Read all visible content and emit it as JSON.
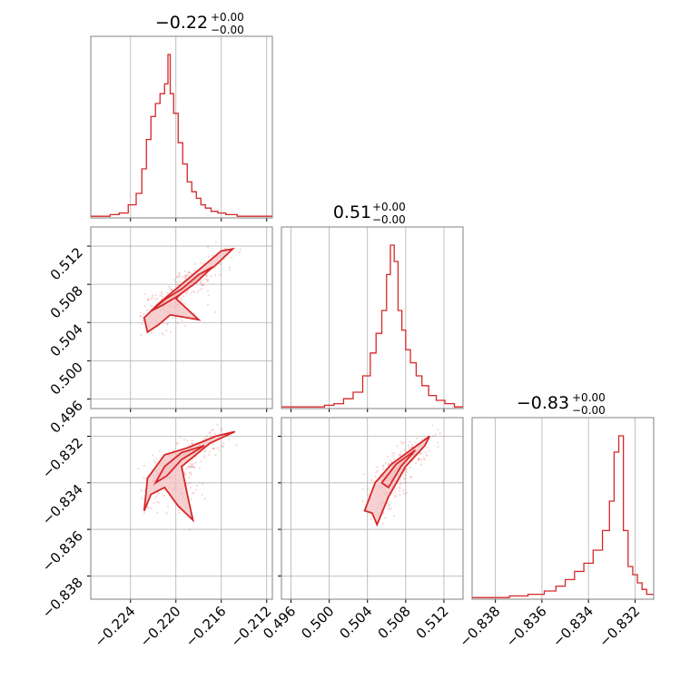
{
  "colors": {
    "main": "#d62728",
    "fill": "#f4c2c3",
    "grid": "#b0b0b0",
    "frame": "#808080"
  },
  "titles": {
    "p0": {
      "base": "−0.22",
      "sup": "+0.00",
      "sub": "−0.00"
    },
    "p1": {
      "base": "0.51",
      "sup": "+0.00",
      "sub": "−0.00"
    },
    "p2": {
      "base": "−0.83",
      "sup": "+0.00",
      "sub": "−0.00"
    }
  },
  "chart_data": [
    {
      "type": "histogram",
      "panel": "diag-0",
      "xlim": [
        -0.2275,
        -0.2115
      ],
      "bins": [
        {
          "x": -0.227,
          "h": 0.01
        },
        {
          "x": -0.2262,
          "h": 0.01
        },
        {
          "x": -0.2254,
          "h": 0.02
        },
        {
          "x": -0.2246,
          "h": 0.03
        },
        {
          "x": -0.2238,
          "h": 0.08
        },
        {
          "x": -0.2232,
          "h": 0.15
        },
        {
          "x": -0.2228,
          "h": 0.3
        },
        {
          "x": -0.2224,
          "h": 0.48
        },
        {
          "x": -0.222,
          "h": 0.62
        },
        {
          "x": -0.2216,
          "h": 0.7
        },
        {
          "x": -0.2212,
          "h": 0.76
        },
        {
          "x": -0.2208,
          "h": 0.82
        },
        {
          "x": -0.2206,
          "h": 1.0
        },
        {
          "x": -0.2204,
          "h": 0.76
        },
        {
          "x": -0.22,
          "h": 0.64
        },
        {
          "x": -0.2196,
          "h": 0.46
        },
        {
          "x": -0.2192,
          "h": 0.33
        },
        {
          "x": -0.2188,
          "h": 0.22
        },
        {
          "x": -0.2184,
          "h": 0.16
        },
        {
          "x": -0.218,
          "h": 0.12
        },
        {
          "x": -0.2176,
          "h": 0.08
        },
        {
          "x": -0.2172,
          "h": 0.06
        },
        {
          "x": -0.2166,
          "h": 0.04
        },
        {
          "x": -0.216,
          "h": 0.03
        },
        {
          "x": -0.2152,
          "h": 0.02
        },
        {
          "x": -0.214,
          "h": 0.01
        },
        {
          "x": -0.2125,
          "h": 0.01
        }
      ],
      "xticks": [
        "−0.224",
        "−0.220",
        "−0.216",
        "−0.212"
      ],
      "xtick_values": [
        -0.224,
        -0.22,
        -0.216,
        -0.212
      ]
    },
    {
      "type": "histogram",
      "panel": "diag-1",
      "xlim": [
        0.495,
        0.514
      ],
      "bins": [
        {
          "x": 0.4958,
          "h": 0.01
        },
        {
          "x": 0.4975,
          "h": 0.01
        },
        {
          "x": 0.499,
          "h": 0.01
        },
        {
          "x": 0.5,
          "h": 0.02
        },
        {
          "x": 0.501,
          "h": 0.03
        },
        {
          "x": 0.502,
          "h": 0.06
        },
        {
          "x": 0.503,
          "h": 0.1
        },
        {
          "x": 0.504,
          "h": 0.2
        },
        {
          "x": 0.5046,
          "h": 0.34
        },
        {
          "x": 0.5052,
          "h": 0.46
        },
        {
          "x": 0.5058,
          "h": 0.6
        },
        {
          "x": 0.5062,
          "h": 0.82
        },
        {
          "x": 0.5066,
          "h": 1.0
        },
        {
          "x": 0.507,
          "h": 0.9
        },
        {
          "x": 0.5074,
          "h": 0.6
        },
        {
          "x": 0.5078,
          "h": 0.48
        },
        {
          "x": 0.5082,
          "h": 0.36
        },
        {
          "x": 0.5088,
          "h": 0.28
        },
        {
          "x": 0.5094,
          "h": 0.2
        },
        {
          "x": 0.51,
          "h": 0.14
        },
        {
          "x": 0.5108,
          "h": 0.08
        },
        {
          "x": 0.5116,
          "h": 0.05
        },
        {
          "x": 0.5126,
          "h": 0.03
        },
        {
          "x": 0.5136,
          "h": 0.01
        }
      ],
      "xticks": [
        "0.496",
        "0.500",
        "0.504",
        "0.508",
        "0.512"
      ],
      "xtick_values": [
        0.496,
        0.5,
        0.504,
        0.508,
        0.512
      ]
    },
    {
      "type": "histogram",
      "panel": "diag-2",
      "xlim": [
        -0.839,
        -0.8312
      ],
      "bins": [
        {
          "x": -0.8386,
          "h": 0.01
        },
        {
          "x": -0.8378,
          "h": 0.01
        },
        {
          "x": -0.837,
          "h": 0.02
        },
        {
          "x": -0.8362,
          "h": 0.03
        },
        {
          "x": -0.8356,
          "h": 0.05
        },
        {
          "x": -0.8352,
          "h": 0.08
        },
        {
          "x": -0.8348,
          "h": 0.12
        },
        {
          "x": -0.8344,
          "h": 0.17
        },
        {
          "x": -0.834,
          "h": 0.22
        },
        {
          "x": -0.8336,
          "h": 0.3
        },
        {
          "x": -0.8332,
          "h": 0.42
        },
        {
          "x": -0.833,
          "h": 0.6
        },
        {
          "x": -0.8328,
          "h": 0.9
        },
        {
          "x": -0.8326,
          "h": 1.0
        },
        {
          "x": -0.8324,
          "h": 0.42
        },
        {
          "x": -0.8322,
          "h": 0.2
        },
        {
          "x": -0.832,
          "h": 0.15
        },
        {
          "x": -0.8318,
          "h": 0.1
        },
        {
          "x": -0.8316,
          "h": 0.06
        },
        {
          "x": -0.8314,
          "h": 0.03
        }
      ],
      "xticks": [
        "−0.838",
        "−0.836",
        "−0.834",
        "−0.832"
      ],
      "xtick_values": [
        -0.838,
        -0.836,
        -0.834,
        -0.832
      ]
    },
    {
      "type": "scatter-contour",
      "panel": "p0-vs-p1",
      "xlim": [
        -0.2275,
        -0.2115
      ],
      "ylim": [
        0.495,
        0.514
      ],
      "yticks": [
        "0.496",
        "0.500",
        "0.504",
        "0.508",
        "0.512"
      ],
      "ytick_values": [
        0.496,
        0.5,
        0.504,
        0.508,
        0.512
      ],
      "outer_contour": [
        [
          -0.2225,
          0.503
        ],
        [
          -0.2228,
          0.5045
        ],
        [
          -0.2215,
          0.506
        ],
        [
          -0.2195,
          0.508
        ],
        [
          -0.218,
          0.5095
        ],
        [
          -0.216,
          0.5115
        ],
        [
          -0.215,
          0.5117
        ],
        [
          -0.2165,
          0.51
        ],
        [
          -0.2185,
          0.5082
        ],
        [
          -0.22,
          0.5065
        ],
        [
          -0.218,
          0.5043
        ],
        [
          -0.2205,
          0.5048
        ],
        [
          -0.2215,
          0.5038
        ]
      ],
      "inner_contour": [
        [
          -0.2222,
          0.5052
        ],
        [
          -0.221,
          0.5064
        ],
        [
          -0.2195,
          0.5075
        ],
        [
          -0.218,
          0.509
        ],
        [
          -0.2168,
          0.5098
        ],
        [
          -0.2182,
          0.5082
        ],
        [
          -0.2198,
          0.5068
        ],
        [
          -0.2212,
          0.5058
        ]
      ]
    },
    {
      "type": "scatter-contour",
      "panel": "p0-vs-p2",
      "xlim": [
        -0.2275,
        -0.2115
      ],
      "ylim": [
        -0.839,
        -0.8312
      ],
      "yticks": [
        "−0.832",
        "−0.834",
        "−0.836",
        "−0.838"
      ],
      "ytick_values": [
        -0.832,
        -0.834,
        -0.836,
        -0.838
      ],
      "outer_contour": [
        [
          -0.2228,
          -0.8352
        ],
        [
          -0.2225,
          -0.8338
        ],
        [
          -0.221,
          -0.8328
        ],
        [
          -0.219,
          -0.8325
        ],
        [
          -0.2165,
          -0.832
        ],
        [
          -0.2148,
          -0.8318
        ],
        [
          -0.217,
          -0.8323
        ],
        [
          -0.2195,
          -0.8333
        ],
        [
          -0.219,
          -0.8345
        ],
        [
          -0.2185,
          -0.8356
        ],
        [
          -0.2198,
          -0.835
        ],
        [
          -0.221,
          -0.8342
        ],
        [
          -0.2222,
          -0.8345
        ]
      ],
      "inner_contour": [
        [
          -0.2218,
          -0.834
        ],
        [
          -0.221,
          -0.8333
        ],
        [
          -0.2195,
          -0.8327
        ],
        [
          -0.2175,
          -0.8324
        ],
        [
          -0.2195,
          -0.833
        ],
        [
          -0.2208,
          -0.8337
        ]
      ]
    },
    {
      "type": "scatter-contour",
      "panel": "p1-vs-p2",
      "xlim": [
        0.495,
        0.514
      ],
      "ylim": [
        -0.839,
        -0.8312
      ],
      "outer_contour": [
        [
          0.5037,
          -0.8352
        ],
        [
          0.5048,
          -0.834
        ],
        [
          0.5065,
          -0.8332
        ],
        [
          0.5085,
          -0.8326
        ],
        [
          0.5105,
          -0.832
        ],
        [
          0.51,
          -0.8324
        ],
        [
          0.508,
          -0.8333
        ],
        [
          0.5062,
          -0.8346
        ],
        [
          0.505,
          -0.8358
        ],
        [
          0.5045,
          -0.8353
        ]
      ],
      "inner_contour": [
        [
          0.5055,
          -0.834
        ],
        [
          0.507,
          -0.8332
        ],
        [
          0.509,
          -0.8326
        ],
        [
          0.5075,
          -0.8333
        ],
        [
          0.5062,
          -0.8342
        ]
      ]
    }
  ]
}
